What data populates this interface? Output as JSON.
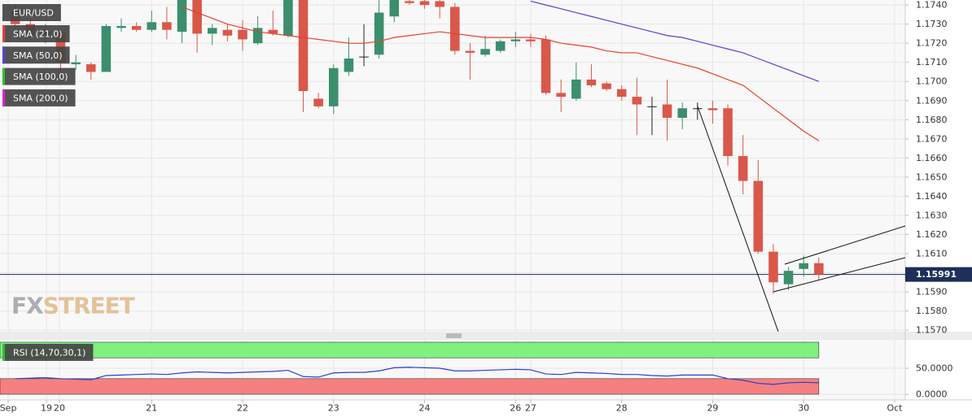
{
  "chart_data": [
    {
      "type": "candlestick",
      "name": "EUR/USD",
      "x": [
        1,
        2,
        3,
        4,
        5,
        6,
        7,
        8,
        9,
        10,
        11,
        12,
        13,
        14,
        15,
        16,
        17,
        18,
        19,
        20,
        21,
        22,
        23,
        24,
        25,
        26,
        27,
        28,
        29,
        30,
        31,
        32,
        33,
        34,
        35,
        36,
        37,
        38,
        39,
        40,
        41,
        42,
        43,
        44,
        45,
        46,
        47,
        48,
        49,
        50,
        51,
        52,
        53,
        54
      ],
      "open": [
        1.1737,
        1.173,
        1.1724,
        1.1726,
        1.1709,
        1.1709,
        1.1705,
        1.1728,
        1.1729,
        1.1727,
        1.1731,
        1.1726,
        1.1743,
        1.1725,
        1.1727,
        1.1727,
        1.172,
        1.1727,
        1.1724,
        1.1743,
        1.1691,
        1.1687,
        1.1705,
        1.1713,
        1.1714,
        1.1734,
        1.1742,
        1.1742,
        1.1742,
        1.1739,
        1.1716,
        1.1714,
        1.1716,
        1.1721,
        1.1722,
        1.1722,
        1.1694,
        1.1691,
        1.1701,
        1.1699,
        1.1696,
        1.1692,
        1.1687,
        1.1688,
        1.1681,
        1.1686,
        1.1686,
        1.1686,
        1.1661,
        1.1648,
        1.1611,
        1.1594,
        1.1602,
        1.1605
      ],
      "high": [
        1.174,
        1.1733,
        1.173,
        1.1728,
        1.1714,
        1.171,
        1.173,
        1.1733,
        1.1731,
        1.1737,
        1.1739,
        1.1748,
        1.1746,
        1.173,
        1.173,
        1.1732,
        1.1734,
        1.1737,
        1.1746,
        1.1746,
        1.1694,
        1.1709,
        1.1723,
        1.173,
        1.1743,
        1.1746,
        1.1748,
        1.1744,
        1.1744,
        1.1741,
        1.172,
        1.1724,
        1.1722,
        1.1726,
        1.1725,
        1.1724,
        1.1701,
        1.171,
        1.1709,
        1.17,
        1.1698,
        1.1702,
        1.1692,
        1.1701,
        1.1689,
        1.1689,
        1.169,
        1.1688,
        1.1672,
        1.1659,
        1.1615,
        1.1603,
        1.1609,
        1.1608
      ],
      "low": [
        1.1728,
        1.1722,
        1.172,
        1.1705,
        1.1706,
        1.1701,
        1.1705,
        1.1726,
        1.1726,
        1.1726,
        1.1722,
        1.172,
        1.1715,
        1.1719,
        1.1721,
        1.1716,
        1.1719,
        1.1724,
        1.1723,
        1.1684,
        1.1686,
        1.1683,
        1.1703,
        1.1708,
        1.1712,
        1.1731,
        1.174,
        1.1738,
        1.1733,
        1.1714,
        1.1701,
        1.1713,
        1.1715,
        1.1718,
        1.1718,
        1.1693,
        1.1684,
        1.169,
        1.1697,
        1.1695,
        1.169,
        1.1672,
        1.1672,
        1.1669,
        1.1675,
        1.168,
        1.1678,
        1.1656,
        1.1641,
        1.161,
        1.1589,
        1.1591,
        1.1598,
        1.1596
      ],
      "close": [
        1.173,
        1.1724,
        1.1726,
        1.171,
        1.171,
        1.1705,
        1.1729,
        1.1729,
        1.1727,
        1.1731,
        1.1727,
        1.1743,
        1.1725,
        1.1728,
        1.1724,
        1.1722,
        1.1728,
        1.1725,
        1.1743,
        1.1695,
        1.1687,
        1.1707,
        1.1712,
        1.1713,
        1.1736,
        1.1744,
        1.1741,
        1.174,
        1.1739,
        1.1716,
        1.1715,
        1.1717,
        1.1721,
        1.1722,
        1.1721,
        1.1694,
        1.1692,
        1.1701,
        1.1698,
        1.1696,
        1.1692,
        1.1688,
        1.1687,
        1.1681,
        1.1686,
        1.1686,
        1.1685,
        1.1661,
        1.1648,
        1.1611,
        1.1595,
        1.1601,
        1.1605,
        1.15991
      ],
      "up_color": "#3b8f6d",
      "down_color": "#d9584a",
      "flat_color": "#222222",
      "xlim": [
        0,
        59.7
      ],
      "ylim": [
        1.15692,
        1.17426
      ],
      "yticks": [
        {
          "value": 1.157,
          "label": "1.1570"
        },
        {
          "value": 1.158,
          "label": "1.1580"
        },
        {
          "value": 1.159,
          "label": "1.1590"
        },
        {
          "value": 1.16,
          "label": "1.1600"
        },
        {
          "value": 1.161,
          "label": "1.1610"
        },
        {
          "value": 1.162,
          "label": "1.1620"
        },
        {
          "value": 1.163,
          "label": "1.1630"
        },
        {
          "value": 1.164,
          "label": "1.1640"
        },
        {
          "value": 1.165,
          "label": "1.1650"
        },
        {
          "value": 1.166,
          "label": "1.1660"
        },
        {
          "value": 1.167,
          "label": "1.1670"
        },
        {
          "value": 1.168,
          "label": "1.1680"
        },
        {
          "value": 1.169,
          "label": "1.1690"
        },
        {
          "value": 1.17,
          "label": "1.1700"
        },
        {
          "value": 1.171,
          "label": "1.1710"
        },
        {
          "value": 1.172,
          "label": "1.1720"
        },
        {
          "value": 1.173,
          "label": "1.1730"
        },
        {
          "value": 1.174,
          "label": "1.1740"
        }
      ],
      "grid": true,
      "last_price": {
        "value": 1.15991,
        "label": "1.15991"
      },
      "watermark": [
        "FX",
        "STREET"
      ],
      "series": [
        {
          "name": "SMA (21,0)",
          "color": "#e8412c",
          "values": [
            null,
            null,
            null,
            null,
            null,
            null,
            null,
            null,
            null,
            null,
            null,
            1.1739,
            1.1736,
            1.1733,
            1.173,
            1.1728,
            1.1726,
            1.1725,
            1.1724,
            1.1723,
            1.1722,
            1.1721,
            1.172,
            1.172,
            1.1721,
            1.1723,
            1.1724,
            1.1725,
            1.1726,
            1.1725,
            1.1724,
            1.1723,
            1.1723,
            1.1723,
            1.1723,
            1.1722,
            1.172,
            1.1719,
            1.1718,
            1.1716,
            1.1715,
            1.1715,
            1.1713,
            1.1711,
            1.1709,
            1.1707,
            1.1704,
            1.1701,
            1.1698,
            1.1692,
            1.1686,
            1.168,
            1.1674,
            1.1669
          ]
        },
        {
          "name": "SMA (50,0)",
          "color": "#5b3fd6",
          "values": [
            null,
            null,
            null,
            null,
            null,
            null,
            null,
            null,
            null,
            null,
            null,
            null,
            null,
            null,
            null,
            null,
            null,
            null,
            null,
            null,
            null,
            null,
            null,
            null,
            null,
            null,
            null,
            null,
            null,
            null,
            null,
            null,
            null,
            null,
            1.1742,
            1.174,
            1.1738,
            1.1736,
            1.1734,
            1.1732,
            1.173,
            1.1728,
            1.1726,
            1.1724,
            1.1723,
            1.1721,
            1.1719,
            1.1717,
            1.1715,
            1.1712,
            1.1709,
            1.1706,
            1.1703,
            1.17
          ]
        },
        {
          "name": "SMA (100,0)",
          "color": "#2fbf2f",
          "values": [
            null,
            null,
            null,
            null,
            null,
            null,
            null,
            null,
            null,
            null,
            null,
            null,
            null,
            null,
            null,
            null,
            null,
            null,
            null,
            null,
            null,
            null,
            null,
            null,
            null,
            null,
            null,
            null,
            null,
            null,
            null,
            null,
            null,
            null,
            null,
            null,
            null,
            null,
            null,
            null,
            null,
            null,
            null,
            null,
            null,
            null,
            null,
            null,
            null,
            null,
            null,
            null,
            null,
            null
          ]
        },
        {
          "name": "SMA (200,0)",
          "color": "#e020e0",
          "values": [
            null,
            null,
            null,
            null,
            null,
            null,
            null,
            null,
            null,
            null,
            null,
            null,
            null,
            null,
            null,
            null,
            null,
            null,
            null,
            null,
            null,
            null,
            null,
            null,
            null,
            null,
            null,
            null,
            null,
            null,
            null,
            null,
            null,
            null,
            null,
            null,
            null,
            null,
            null,
            null,
            null,
            null,
            null,
            null,
            null,
            null,
            null,
            null,
            null,
            null,
            null,
            null,
            null,
            null
          ]
        }
      ]
    },
    {
      "type": "line",
      "name": "RSI (14,70,30,1)",
      "color": "#2a3fd0",
      "label_color": "#2fbf2f",
      "x": [
        1,
        2,
        3,
        4,
        5,
        6,
        7,
        8,
        9,
        10,
        11,
        12,
        13,
        14,
        15,
        16,
        17,
        18,
        19,
        20,
        21,
        22,
        23,
        24,
        25,
        26,
        27,
        28,
        29,
        30,
        31,
        32,
        33,
        34,
        35,
        36,
        37,
        38,
        39,
        40,
        41,
        42,
        43,
        44,
        45,
        46,
        47,
        48,
        49,
        50,
        51,
        52,
        53,
        54
      ],
      "values": [
        30,
        31,
        32,
        30,
        29,
        28,
        36,
        37,
        38,
        39,
        38,
        41,
        43,
        42,
        41,
        42,
        43,
        44,
        46,
        34,
        33,
        41,
        42,
        42,
        45,
        51,
        52,
        51,
        50,
        45,
        45,
        46,
        47,
        48,
        47,
        39,
        38,
        42,
        41,
        40,
        38,
        38,
        36,
        35,
        37,
        37,
        37,
        30,
        27,
        21,
        19,
        22,
        23,
        22
      ],
      "bands": [
        {
          "from": 70,
          "to": 100,
          "color": "#80f080"
        },
        {
          "from": 0,
          "to": 30,
          "color": "#f58080"
        }
      ],
      "xlim": [
        0,
        59.7
      ],
      "ylim": [
        -10.9,
        104.7
      ],
      "yticks": [
        {
          "value": 50,
          "label": "50.0000"
        },
        {
          "value": 0,
          "label": "0.0000"
        }
      ],
      "xticks": [
        {
          "value": 0.54,
          "label": "Sep"
        },
        {
          "value": 3.06,
          "label": "19"
        },
        {
          "value": 3.92,
          "label": "20"
        },
        {
          "value": 10,
          "label": "21"
        },
        {
          "value": 16,
          "label": "22"
        },
        {
          "value": 22,
          "label": "23"
        },
        {
          "value": 28,
          "label": "24"
        },
        {
          "value": 34,
          "label": "26"
        },
        {
          "value": 35,
          "label": "27"
        },
        {
          "value": 41,
          "label": "28"
        },
        {
          "value": 47,
          "label": "29"
        },
        {
          "value": 53,
          "label": "30"
        },
        {
          "value": 59,
          "label": "Oct"
        }
      ],
      "grid": true
    }
  ]
}
